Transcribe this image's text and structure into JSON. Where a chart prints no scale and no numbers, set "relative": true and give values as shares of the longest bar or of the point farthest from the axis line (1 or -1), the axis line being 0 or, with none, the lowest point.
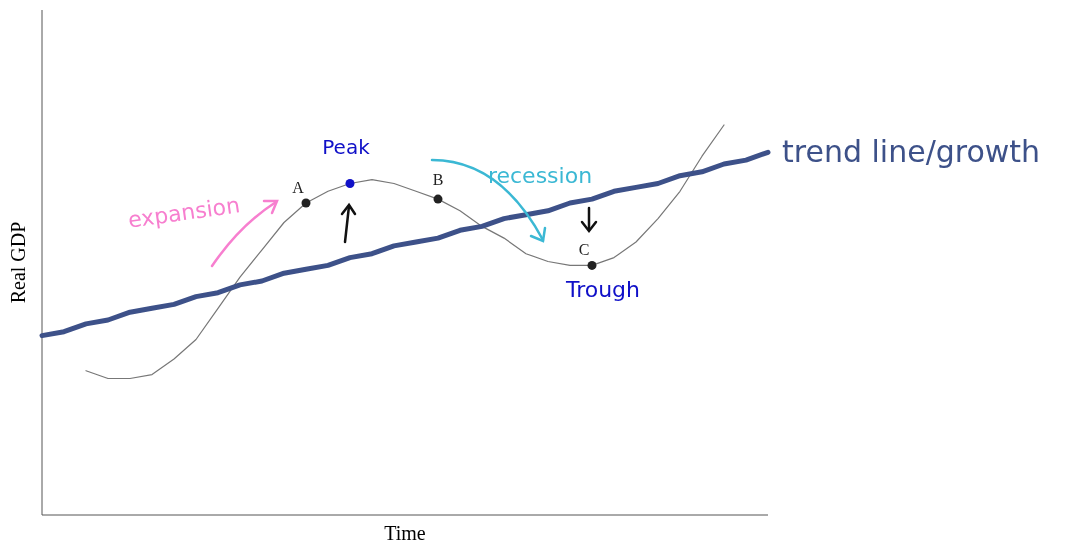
{
  "chart_data": {
    "type": "line",
    "relative": true,
    "xlabel": "Time",
    "ylabel": "Real GDP",
    "categories": [
      null,
      null,
      null,
      null,
      null,
      null,
      null,
      null,
      null,
      null,
      null,
      null,
      null,
      null,
      null,
      null,
      null,
      null,
      null,
      null,
      null,
      null,
      null,
      null,
      null,
      null,
      null,
      null,
      null,
      null,
      null,
      null,
      null,
      null
    ],
    "series": [
      {
        "color": "#777777",
        "values": [
          null,
          null,
          0.37,
          0.35,
          0.35,
          0.36,
          0.4,
          0.45,
          0.53,
          0.61,
          0.68,
          0.75,
          0.8,
          0.83,
          0.85,
          0.86,
          0.85,
          0.83,
          0.81,
          0.78,
          0.74,
          0.71,
          0.67,
          0.65,
          0.64,
          0.64,
          0.66,
          0.7,
          0.76,
          0.83,
          0.92,
          1,
          null,
          null
        ]
      },
      {
        "name": "trend line/growth",
        "color": "#3d5189",
        "values": [
          0.46,
          0.47,
          0.49,
          0.5,
          0.52,
          0.53,
          0.54,
          0.56,
          0.57,
          0.59,
          0.6,
          0.62,
          0.63,
          0.64,
          0.66,
          0.67,
          0.69,
          0.7,
          0.71,
          0.73,
          0.74,
          0.76,
          0.77,
          0.78,
          0.8,
          0.81,
          0.83,
          0.84,
          0.85,
          0.87,
          0.88,
          0.9,
          0.91,
          0.93
        ]
      }
    ],
    "annotations": [
      {
        "text": "A",
        "y": 0.8
      },
      {
        "text": "Peak",
        "y": 0.85
      },
      {
        "text": "B",
        "y": 0.81
      },
      {
        "text": "C",
        "y": 0.64
      },
      "expansion",
      "recession",
      "Trough"
    ]
  }
}
